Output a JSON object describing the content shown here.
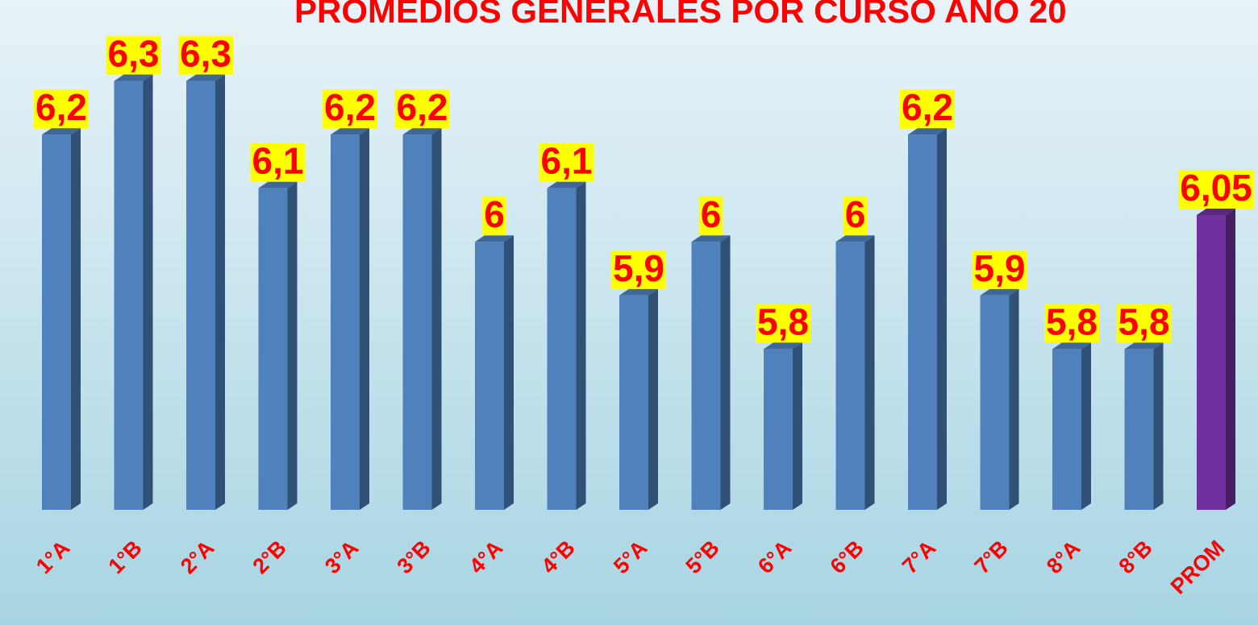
{
  "chart_data": {
    "type": "bar",
    "title": "PROMEDIOS GENERALES POR CURSO AÑO 20",
    "categories": [
      "1°A",
      "1°B",
      "2°A",
      "2°B",
      "3°A",
      "3°B",
      "4°A",
      "4°B",
      "5°A",
      "5°B",
      "6°A",
      "6°B",
      "7°A",
      "7°B",
      "8°A",
      "8°B",
      "PROM"
    ],
    "values": [
      6.2,
      6.3,
      6.3,
      6.1,
      6.2,
      6.2,
      6,
      6.1,
      5.9,
      6,
      5.8,
      6,
      6.2,
      5.9,
      5.8,
      5.8,
      6.05
    ],
    "value_labels": [
      "6,2",
      "6,3",
      "6,3",
      "6,1",
      "6,2",
      "6,2",
      "6",
      "6,1",
      "5,9",
      "6",
      "5,8",
      "6",
      "6,2",
      "5,9",
      "5,8",
      "5,8",
      "6,05"
    ],
    "colors": [
      "#4f81bd",
      "#4f81bd",
      "#4f81bd",
      "#4f81bd",
      "#4f81bd",
      "#4f81bd",
      "#4f81bd",
      "#4f81bd",
      "#4f81bd",
      "#4f81bd",
      "#4f81bd",
      "#4f81bd",
      "#4f81bd",
      "#4f81bd",
      "#4f81bd",
      "#4f81bd",
      "#7030a0"
    ],
    "ylim": [
      5.5,
      6.4
    ]
  }
}
